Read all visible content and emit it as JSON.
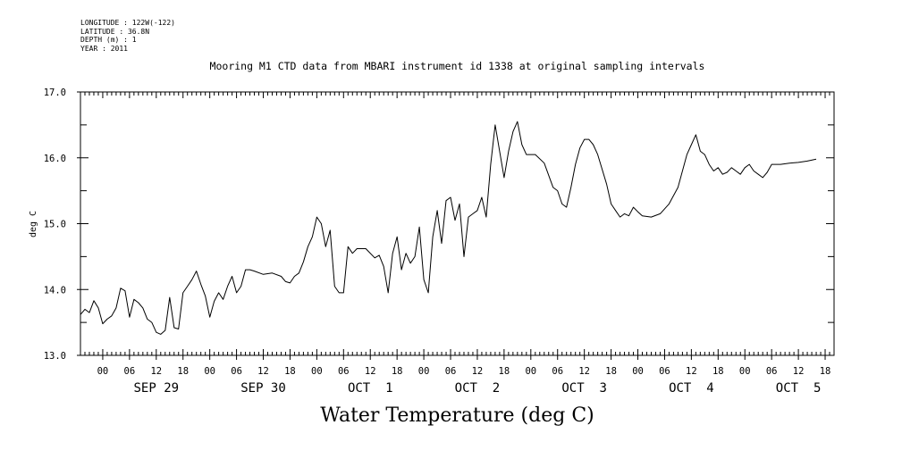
{
  "header": {
    "longitude": "LONGITUDE : 122W(-122)",
    "latitude": "LATITUDE : 36.8N",
    "depth": "DEPTH (m) : 1",
    "year": "YEAR : 2011"
  },
  "chart_data": {
    "type": "line",
    "title": "Mooring M1 CTD data from MBARI instrument id 1338 at original sampling intervals",
    "xlabel": "Water Temperature (deg C)",
    "ylabel": "deg C",
    "xlim": [
      "2011-09-28T19:00",
      "2011-10-05T20:00"
    ],
    "ylim": [
      13.0,
      17.0
    ],
    "y_ticks": [
      "13.0",
      "14.0",
      "15.0",
      "16.0",
      "17.0"
    ],
    "hour_ticks": [
      "00",
      "06",
      "12",
      "18",
      "00",
      "06",
      "12",
      "18",
      "00",
      "06",
      "12",
      "18",
      "00",
      "06",
      "12",
      "18",
      "00",
      "06",
      "12",
      "18",
      "00",
      "06",
      "12",
      "18",
      "00",
      "06",
      "12",
      "18"
    ],
    "day_labels": [
      "SEP 29",
      "SEP 30",
      "OCT  1",
      "OCT  2",
      "OCT  3",
      "OCT  4",
      "OCT  5"
    ],
    "grid": false,
    "series": [
      {
        "color": "#000000",
        "points": [
          [
            "2011-09-28T19:00",
            13.62
          ],
          [
            "2011-09-28T20:00",
            13.7
          ],
          [
            "2011-09-28T21:00",
            13.65
          ],
          [
            "2011-09-28T22:00",
            13.83
          ],
          [
            "2011-09-28T23:00",
            13.72
          ],
          [
            "2011-09-29T00:00",
            13.48
          ],
          [
            "2011-09-29T01:00",
            13.55
          ],
          [
            "2011-09-29T02:00",
            13.6
          ],
          [
            "2011-09-29T03:00",
            13.72
          ],
          [
            "2011-09-29T04:00",
            14.02
          ],
          [
            "2011-09-29T05:00",
            13.98
          ],
          [
            "2011-09-29T06:00",
            13.58
          ],
          [
            "2011-09-29T07:00",
            13.85
          ],
          [
            "2011-09-29T08:00",
            13.8
          ],
          [
            "2011-09-29T09:00",
            13.72
          ],
          [
            "2011-09-29T10:00",
            13.55
          ],
          [
            "2011-09-29T11:00",
            13.5
          ],
          [
            "2011-09-29T12:00",
            13.35
          ],
          [
            "2011-09-29T13:00",
            13.32
          ],
          [
            "2011-09-29T14:00",
            13.38
          ],
          [
            "2011-09-29T15:00",
            13.88
          ],
          [
            "2011-09-29T16:00",
            13.42
          ],
          [
            "2011-09-29T17:00",
            13.4
          ],
          [
            "2011-09-29T18:00",
            13.95
          ],
          [
            "2011-09-29T19:00",
            14.05
          ],
          [
            "2011-09-29T20:00",
            14.15
          ],
          [
            "2011-09-29T21:00",
            14.28
          ],
          [
            "2011-09-29T22:00",
            14.08
          ],
          [
            "2011-09-29T23:00",
            13.9
          ],
          [
            "2011-09-30T00:00",
            13.58
          ],
          [
            "2011-09-30T01:00",
            13.82
          ],
          [
            "2011-09-30T02:00",
            13.95
          ],
          [
            "2011-09-30T03:00",
            13.85
          ],
          [
            "2011-09-30T04:00",
            14.05
          ],
          [
            "2011-09-30T05:00",
            14.2
          ],
          [
            "2011-09-30T06:00",
            13.95
          ],
          [
            "2011-09-30T07:00",
            14.05
          ],
          [
            "2011-09-30T08:00",
            14.3
          ],
          [
            "2011-09-30T09:00",
            14.3
          ],
          [
            "2011-09-30T10:00",
            14.28
          ],
          [
            "2011-09-30T12:00",
            14.23
          ],
          [
            "2011-09-30T14:00",
            14.25
          ],
          [
            "2011-09-30T16:00",
            14.2
          ],
          [
            "2011-09-30T17:00",
            14.12
          ],
          [
            "2011-09-30T18:00",
            14.1
          ],
          [
            "2011-09-30T19:00",
            14.2
          ],
          [
            "2011-09-30T20:00",
            14.25
          ],
          [
            "2011-09-30T21:00",
            14.42
          ],
          [
            "2011-09-30T22:00",
            14.65
          ],
          [
            "2011-09-30T23:00",
            14.8
          ],
          [
            "2011-10-01T00:00",
            15.1
          ],
          [
            "2011-10-01T01:00",
            15.0
          ],
          [
            "2011-10-01T02:00",
            14.65
          ],
          [
            "2011-10-01T03:00",
            14.9
          ],
          [
            "2011-10-01T04:00",
            14.05
          ],
          [
            "2011-10-01T05:00",
            13.95
          ],
          [
            "2011-10-01T06:00",
            13.95
          ],
          [
            "2011-10-01T07:00",
            14.65
          ],
          [
            "2011-10-01T08:00",
            14.55
          ],
          [
            "2011-10-01T09:00",
            14.62
          ],
          [
            "2011-10-01T11:00",
            14.62
          ],
          [
            "2011-10-01T13:00",
            14.48
          ],
          [
            "2011-10-01T14:00",
            14.52
          ],
          [
            "2011-10-01T15:00",
            14.35
          ],
          [
            "2011-10-01T16:00",
            13.95
          ],
          [
            "2011-10-01T17:00",
            14.55
          ],
          [
            "2011-10-01T18:00",
            14.8
          ],
          [
            "2011-10-01T19:00",
            14.3
          ],
          [
            "2011-10-01T20:00",
            14.55
          ],
          [
            "2011-10-01T21:00",
            14.4
          ],
          [
            "2011-10-01T22:00",
            14.5
          ],
          [
            "2011-10-01T23:00",
            14.95
          ],
          [
            "2011-10-02T00:00",
            14.15
          ],
          [
            "2011-10-02T01:00",
            13.95
          ],
          [
            "2011-10-02T02:00",
            14.8
          ],
          [
            "2011-10-02T03:00",
            15.2
          ],
          [
            "2011-10-02T04:00",
            14.7
          ],
          [
            "2011-10-02T05:00",
            15.35
          ],
          [
            "2011-10-02T06:00",
            15.4
          ],
          [
            "2011-10-02T07:00",
            15.05
          ],
          [
            "2011-10-02T08:00",
            15.3
          ],
          [
            "2011-10-02T09:00",
            14.5
          ],
          [
            "2011-10-02T10:00",
            15.1
          ],
          [
            "2011-10-02T11:00",
            15.15
          ],
          [
            "2011-10-02T12:00",
            15.2
          ],
          [
            "2011-10-02T13:00",
            15.4
          ],
          [
            "2011-10-02T14:00",
            15.1
          ],
          [
            "2011-10-02T15:00",
            15.9
          ],
          [
            "2011-10-02T16:00",
            16.5
          ],
          [
            "2011-10-02T17:00",
            16.1
          ],
          [
            "2011-10-02T18:00",
            15.7
          ],
          [
            "2011-10-02T19:00",
            16.1
          ],
          [
            "2011-10-02T20:00",
            16.4
          ],
          [
            "2011-10-02T21:00",
            16.55
          ],
          [
            "2011-10-02T22:00",
            16.2
          ],
          [
            "2011-10-02T23:00",
            16.05
          ],
          [
            "2011-10-03T01:00",
            16.05
          ],
          [
            "2011-10-03T03:00",
            15.92
          ],
          [
            "2011-10-03T05:00",
            15.55
          ],
          [
            "2011-10-03T06:00",
            15.5
          ],
          [
            "2011-10-03T07:00",
            15.3
          ],
          [
            "2011-10-03T08:00",
            15.25
          ],
          [
            "2011-10-03T09:00",
            15.55
          ],
          [
            "2011-10-03T10:00",
            15.9
          ],
          [
            "2011-10-03T11:00",
            16.15
          ],
          [
            "2011-10-03T12:00",
            16.28
          ],
          [
            "2011-10-03T13:00",
            16.28
          ],
          [
            "2011-10-03T14:00",
            16.2
          ],
          [
            "2011-10-03T15:00",
            16.05
          ],
          [
            "2011-10-03T17:00",
            15.6
          ],
          [
            "2011-10-03T18:00",
            15.3
          ],
          [
            "2011-10-03T19:00",
            15.2
          ],
          [
            "2011-10-03T20:00",
            15.1
          ],
          [
            "2011-10-03T21:00",
            15.15
          ],
          [
            "2011-10-03T22:00",
            15.12
          ],
          [
            "2011-10-03T23:00",
            15.25
          ],
          [
            "2011-10-04T00:00",
            15.18
          ],
          [
            "2011-10-04T01:00",
            15.12
          ],
          [
            "2011-10-04T03:00",
            15.1
          ],
          [
            "2011-10-04T05:00",
            15.15
          ],
          [
            "2011-10-04T07:00",
            15.3
          ],
          [
            "2011-10-04T09:00",
            15.55
          ],
          [
            "2011-10-04T10:00",
            15.8
          ],
          [
            "2011-10-04T11:00",
            16.05
          ],
          [
            "2011-10-04T12:00",
            16.2
          ],
          [
            "2011-10-04T13:00",
            16.35
          ],
          [
            "2011-10-04T14:00",
            16.1
          ],
          [
            "2011-10-04T15:00",
            16.05
          ],
          [
            "2011-10-04T16:00",
            15.9
          ],
          [
            "2011-10-04T17:00",
            15.8
          ],
          [
            "2011-10-04T18:00",
            15.85
          ],
          [
            "2011-10-04T19:00",
            15.75
          ],
          [
            "2011-10-04T20:00",
            15.78
          ],
          [
            "2011-10-04T21:00",
            15.85
          ],
          [
            "2011-10-04T22:00",
            15.8
          ],
          [
            "2011-10-04T23:00",
            15.75
          ],
          [
            "2011-10-05T00:00",
            15.85
          ],
          [
            "2011-10-05T01:00",
            15.9
          ],
          [
            "2011-10-05T02:00",
            15.8
          ],
          [
            "2011-10-05T03:00",
            15.75
          ],
          [
            "2011-10-05T04:00",
            15.7
          ],
          [
            "2011-10-05T05:00",
            15.78
          ],
          [
            "2011-10-05T06:00",
            15.9
          ],
          [
            "2011-10-05T08:00",
            15.9
          ],
          [
            "2011-10-05T10:00",
            15.92
          ],
          [
            "2011-10-05T12:00",
            15.93
          ],
          [
            "2011-10-05T14:00",
            15.95
          ],
          [
            "2011-10-05T16:00",
            15.98
          ]
        ]
      }
    ]
  }
}
